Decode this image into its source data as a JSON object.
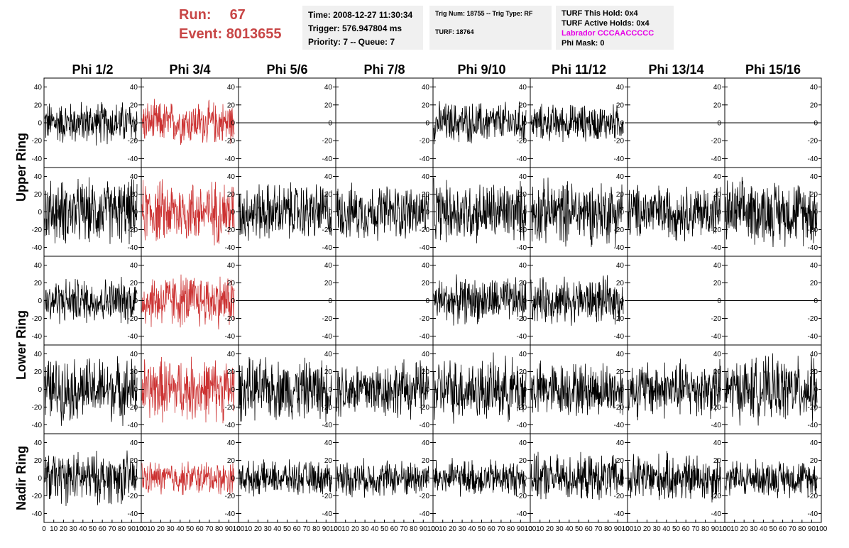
{
  "header": {
    "run_label": "Run:",
    "run_value": "67",
    "event_label": "Event:",
    "event_value": "8013655",
    "time": "Time: 2008-12-27 11:30:34",
    "trigger": "Trigger: 576.947804 ms",
    "priority_queue": "Priority: 7 -- Queue: 7",
    "trig_num_type": "Trig Num: 18755 -- Trig Type: RF",
    "turf": "TURF: 18764",
    "turf_this_hold": "TURF This Hold: 0x4",
    "turf_active_holds": "TURF Active Holds: 0x4",
    "labrador": "Labrador CCCAACCCCC",
    "phi_mask": "Phi Mask: 0"
  },
  "colors": {
    "trace": "#000000",
    "highlight_trace": "#cc3333",
    "header_red": "#c84646",
    "labrador": "#e600e6",
    "info_box_bg": "#f0f0f0"
  },
  "chart_data": {
    "type": "line",
    "columns": [
      "Phi 1/2",
      "Phi 3/4",
      "Phi 5/6",
      "Phi 7/8",
      "Phi 9/10",
      "Phi 11/12",
      "Phi 13/14",
      "Phi 15/16"
    ],
    "rows": [
      "Upper Ring",
      "Lower Ring",
      "Nadir Ring"
    ],
    "y_ticks": [
      -40,
      -20,
      0,
      20,
      40
    ],
    "x_ticks": [
      0,
      10,
      20,
      30,
      40,
      50,
      60,
      70,
      80,
      90,
      100
    ],
    "xlim": [
      0,
      100
    ],
    "ylim": [
      -50,
      50
    ],
    "highlight_column": "Phi 3/4",
    "panels": [
      {
        "row": 0,
        "col": 0,
        "amplitude": 28,
        "flat": false,
        "highlight": false
      },
      {
        "row": 0,
        "col": 1,
        "amplitude": 28,
        "flat": false,
        "highlight": true
      },
      {
        "row": 0,
        "col": 2,
        "amplitude": 0,
        "flat": true,
        "highlight": false
      },
      {
        "row": 0,
        "col": 3,
        "amplitude": 0,
        "flat": true,
        "highlight": false
      },
      {
        "row": 0,
        "col": 4,
        "amplitude": 27,
        "flat": false,
        "highlight": false
      },
      {
        "row": 0,
        "col": 5,
        "amplitude": 24,
        "flat": false,
        "highlight": false
      },
      {
        "row": 0,
        "col": 6,
        "amplitude": 0,
        "flat": true,
        "highlight": false
      },
      {
        "row": 0,
        "col": 7,
        "amplitude": 0,
        "flat": true,
        "highlight": false
      },
      {
        "row": 1,
        "col": 0,
        "amplitude": 42,
        "flat": false,
        "highlight": false
      },
      {
        "row": 1,
        "col": 1,
        "amplitude": 42,
        "flat": false,
        "highlight": true
      },
      {
        "row": 1,
        "col": 2,
        "amplitude": 38,
        "flat": false,
        "highlight": false
      },
      {
        "row": 1,
        "col": 3,
        "amplitude": 36,
        "flat": false,
        "highlight": false
      },
      {
        "row": 1,
        "col": 4,
        "amplitude": 40,
        "flat": false,
        "highlight": false
      },
      {
        "row": 1,
        "col": 5,
        "amplitude": 42,
        "flat": false,
        "highlight": false
      },
      {
        "row": 1,
        "col": 6,
        "amplitude": 36,
        "flat": false,
        "highlight": false
      },
      {
        "row": 1,
        "col": 7,
        "amplitude": 42,
        "flat": false,
        "highlight": false
      },
      {
        "row": 2,
        "col": 0,
        "amplitude": 30,
        "flat": false,
        "highlight": false
      },
      {
        "row": 2,
        "col": 1,
        "amplitude": 36,
        "flat": false,
        "highlight": true
      },
      {
        "row": 2,
        "col": 2,
        "amplitude": 0,
        "flat": true,
        "highlight": false
      },
      {
        "row": 2,
        "col": 3,
        "amplitude": 0,
        "flat": true,
        "highlight": false
      },
      {
        "row": 2,
        "col": 4,
        "amplitude": 30,
        "flat": false,
        "highlight": false
      },
      {
        "row": 2,
        "col": 5,
        "amplitude": 30,
        "flat": false,
        "highlight": false
      },
      {
        "row": 2,
        "col": 6,
        "amplitude": 0,
        "flat": true,
        "highlight": false
      },
      {
        "row": 2,
        "col": 7,
        "amplitude": 0,
        "flat": true,
        "highlight": false
      },
      {
        "row": 3,
        "col": 0,
        "amplitude": 42,
        "flat": false,
        "highlight": false
      },
      {
        "row": 3,
        "col": 1,
        "amplitude": 42,
        "flat": false,
        "highlight": true
      },
      {
        "row": 3,
        "col": 2,
        "amplitude": 40,
        "flat": false,
        "highlight": false
      },
      {
        "row": 3,
        "col": 3,
        "amplitude": 38,
        "flat": false,
        "highlight": false
      },
      {
        "row": 3,
        "col": 4,
        "amplitude": 42,
        "flat": false,
        "highlight": false
      },
      {
        "row": 3,
        "col": 5,
        "amplitude": 36,
        "flat": false,
        "highlight": false
      },
      {
        "row": 3,
        "col": 6,
        "amplitude": 38,
        "flat": false,
        "highlight": false
      },
      {
        "row": 3,
        "col": 7,
        "amplitude": 42,
        "flat": false,
        "highlight": false
      },
      {
        "row": 4,
        "col": 0,
        "amplitude": 34,
        "flat": false,
        "highlight": false
      },
      {
        "row": 4,
        "col": 1,
        "amplitude": 22,
        "flat": false,
        "highlight": true
      },
      {
        "row": 4,
        "col": 2,
        "amplitude": 22,
        "flat": false,
        "highlight": false
      },
      {
        "row": 4,
        "col": 3,
        "amplitude": 24,
        "flat": false,
        "highlight": false
      },
      {
        "row": 4,
        "col": 4,
        "amplitude": 24,
        "flat": false,
        "highlight": false
      },
      {
        "row": 4,
        "col": 5,
        "amplitude": 30,
        "flat": false,
        "highlight": false
      },
      {
        "row": 4,
        "col": 6,
        "amplitude": 32,
        "flat": false,
        "highlight": false
      },
      {
        "row": 4,
        "col": 7,
        "amplitude": 24,
        "flat": false,
        "highlight": false
      }
    ]
  }
}
